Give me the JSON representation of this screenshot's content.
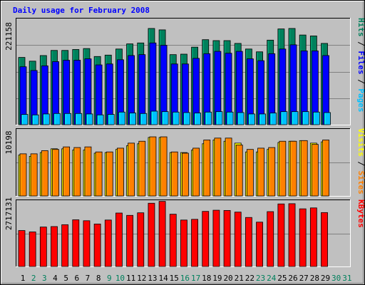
{
  "title": "Daily usage for February 2008",
  "colors": {
    "background": "#c0c0c0",
    "plot_background": "#c0c0c0",
    "title": "#0000ff",
    "hits": "#00805c",
    "files": "#0000ff",
    "pages": "#00c0ff",
    "visits": "#ffff00",
    "sites": "#ff8000",
    "kbytes": "#ff0000",
    "weekday_label": "#000000",
    "weekend_label": "#00805c"
  },
  "chart_data": [
    {
      "type": "bar",
      "name": "hits-files-pages",
      "max_label": "221158",
      "legend": [
        {
          "text": "Pages",
          "color": "#00c0ff"
        },
        {
          "text": " / ",
          "color": "#000000"
        },
        {
          "text": "Files",
          "color": "#0000ff"
        },
        {
          "text": " / ",
          "color": "#000000"
        },
        {
          "text": "Hits",
          "color": "#00805c"
        }
      ],
      "ylim": [
        0,
        221158
      ],
      "grid": true,
      "series": [
        {
          "name": "Hits",
          "color": "#00805c",
          "values": [
            144000,
            136000,
            148000,
            159000,
            159000,
            161000,
            163000,
            146000,
            149000,
            162000,
            173000,
            175000,
            206000,
            203000,
            150000,
            151000,
            166000,
            182000,
            180000,
            180000,
            174000,
            162000,
            156000,
            181000,
            205000,
            206000,
            192000,
            190000,
            174000
          ]
        },
        {
          "name": "Files",
          "color": "#0000ff",
          "values": [
            124000,
            116000,
            126000,
            135000,
            138000,
            138000,
            141000,
            128000,
            130000,
            139000,
            148000,
            150000,
            175000,
            170000,
            130000,
            130000,
            142000,
            152000,
            157000,
            153000,
            157000,
            141000,
            137000,
            152000,
            162000,
            171000,
            158000,
            158000,
            148000
          ]
        },
        {
          "name": "Pages",
          "color": "#00c0ff",
          "values": [
            22000,
            21000,
            23000,
            24000,
            24000,
            24000,
            23000,
            21000,
            22000,
            27000,
            25000,
            24000,
            29000,
            28000,
            27000,
            26000,
            25000,
            27000,
            28000,
            27000,
            26000,
            23000,
            23000,
            25000,
            28000,
            28000,
            28000,
            27000,
            26000
          ]
        }
      ]
    },
    {
      "type": "bar",
      "name": "visits-sites",
      "max_label": "10198",
      "legend": [
        {
          "text": "Sites",
          "color": "#ff8000"
        },
        {
          "text": " / ",
          "color": "#000000"
        },
        {
          "text": "Visits",
          "color": "#ffff00"
        }
      ],
      "ylim": [
        0,
        10198
      ],
      "grid": true,
      "series": [
        {
          "name": "Visits",
          "color": "#ffff00",
          "values": [
            6500,
            6300,
            6900,
            7500,
            7500,
            7300,
            7300,
            6800,
            6900,
            7400,
            8000,
            8300,
            9300,
            9300,
            6900,
            6900,
            7300,
            8300,
            8900,
            8700,
            8400,
            7000,
            7000,
            7400,
            8500,
            8700,
            8800,
            8400,
            8600
          ]
        },
        {
          "name": "Sites",
          "color": "#ff8000",
          "values": [
            6700,
            6700,
            7200,
            7400,
            7800,
            7700,
            7800,
            7000,
            7000,
            7600,
            8400,
            8700,
            9400,
            9400,
            7000,
            6800,
            7600,
            8900,
            9200,
            9200,
            8100,
            7400,
            7600,
            7700,
            8700,
            8700,
            8800,
            8200,
            8900
          ]
        }
      ]
    },
    {
      "type": "bar",
      "name": "kbytes",
      "max_label": "2717131",
      "legend": [
        {
          "text": "KBytes",
          "color": "#ff0000"
        }
      ],
      "ylim": [
        0,
        2717131
      ],
      "grid": true,
      "series": [
        {
          "name": "KBytes",
          "color": "#ff0000",
          "values": [
            1540000,
            1480000,
            1690000,
            1710000,
            1790000,
            2000000,
            1960000,
            1820000,
            1990000,
            2290000,
            2190000,
            2300000,
            2710000,
            2790000,
            2240000,
            1990000,
            2020000,
            2360000,
            2410000,
            2400000,
            2330000,
            2100000,
            1900000,
            2350000,
            2680000,
            2690000,
            2470000,
            2510000,
            2310000
          ]
        }
      ]
    }
  ],
  "days": [
    {
      "label": "1",
      "weekend": false
    },
    {
      "label": "2",
      "weekend": true
    },
    {
      "label": "3",
      "weekend": true
    },
    {
      "label": "4",
      "weekend": false
    },
    {
      "label": "5",
      "weekend": false
    },
    {
      "label": "6",
      "weekend": false
    },
    {
      "label": "7",
      "weekend": false
    },
    {
      "label": "8",
      "weekend": false
    },
    {
      "label": "9",
      "weekend": true
    },
    {
      "label": "10",
      "weekend": true
    },
    {
      "label": "11",
      "weekend": false
    },
    {
      "label": "12",
      "weekend": false
    },
    {
      "label": "13",
      "weekend": false
    },
    {
      "label": "14",
      "weekend": false
    },
    {
      "label": "15",
      "weekend": false
    },
    {
      "label": "16",
      "weekend": true
    },
    {
      "label": "17",
      "weekend": true
    },
    {
      "label": "18",
      "weekend": false
    },
    {
      "label": "19",
      "weekend": false
    },
    {
      "label": "20",
      "weekend": false
    },
    {
      "label": "21",
      "weekend": false
    },
    {
      "label": "22",
      "weekend": false
    },
    {
      "label": "23",
      "weekend": true
    },
    {
      "label": "24",
      "weekend": true
    },
    {
      "label": "25",
      "weekend": false
    },
    {
      "label": "26",
      "weekend": false
    },
    {
      "label": "27",
      "weekend": false
    },
    {
      "label": "28",
      "weekend": false
    },
    {
      "label": "29",
      "weekend": false
    },
    {
      "label": "30",
      "weekend": true
    },
    {
      "label": "31",
      "weekend": true
    }
  ]
}
